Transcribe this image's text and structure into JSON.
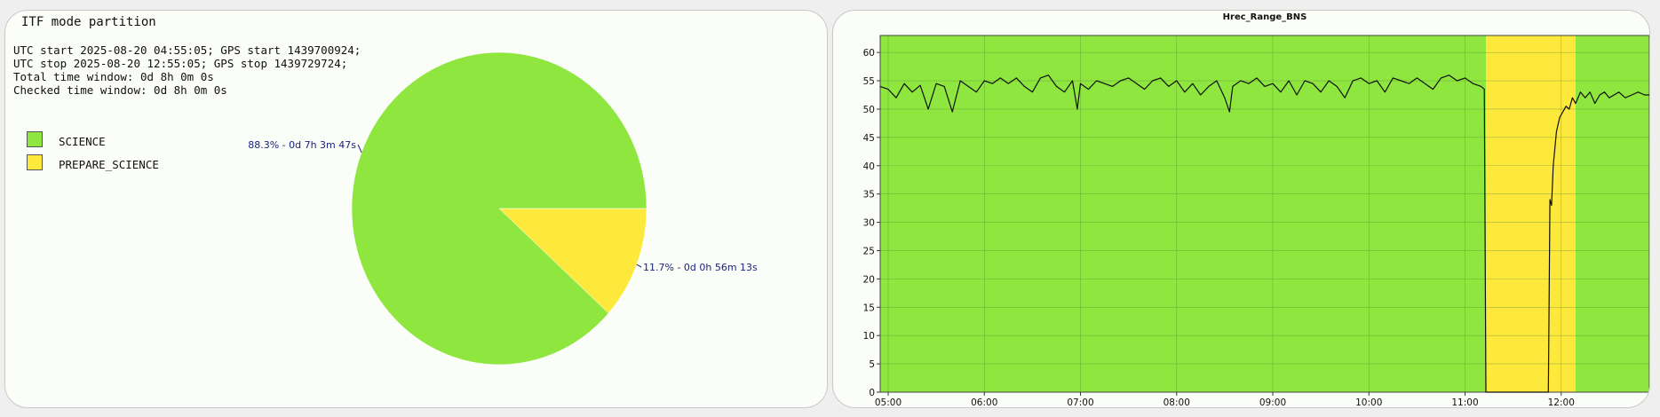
{
  "left_panel": {
    "title": "ITF mode partition",
    "info_lines": [
      "UTC start 2025-08-20 04:55:05; GPS start 1439700924;",
      "UTC stop 2025-08-20 12:55:05; GPS stop 1439729724;",
      "Total time window: 0d 8h 0m 0s",
      "Checked time window: 0d 8h 0m 0s"
    ]
  },
  "chart_data": [
    {
      "type": "pie",
      "title": "ITF mode partition",
      "slices": [
        {
          "name": "SCIENCE",
          "value": 88.3,
          "label": "88.3% - 0d 7h 3m 47s",
          "color": "#8ee63e"
        },
        {
          "name": "PREPARE_SCIENCE",
          "value": 11.7,
          "label": "11.7% - 0d 0h 56m 13s",
          "color": "#fde83c"
        }
      ],
      "legend": "top-left"
    },
    {
      "type": "line",
      "title": "Hrec_Range_BNS",
      "xlabel": "",
      "ylabel": "",
      "x_tick_labels": [
        "05:00",
        "06:00",
        "07:00",
        "08:00",
        "09:00",
        "10:00",
        "11:00",
        "12:00"
      ],
      "y_ticks": [
        0,
        5,
        10,
        15,
        20,
        25,
        30,
        35,
        40,
        45,
        50,
        55,
        60
      ],
      "xlim": [
        "04:55",
        "12:55"
      ],
      "ylim": [
        0,
        63
      ],
      "grid": true,
      "background_bands": [
        {
          "state": "SCIENCE",
          "start": "04:55",
          "end": "11:13",
          "color": "#8ee63e"
        },
        {
          "state": "PREPARE_SCIENCE",
          "start": "11:13",
          "end": "12:09",
          "color": "#fde83c"
        },
        {
          "state": "SCIENCE",
          "start": "12:09",
          "end": "12:55",
          "color": "#8ee63e"
        }
      ],
      "series": [
        {
          "color": "#111111",
          "points": [
            [
              "04:55",
              54.0
            ],
            [
              "05:00",
              53.5
            ],
            [
              "05:05",
              52.0
            ],
            [
              "05:10",
              54.5
            ],
            [
              "05:15",
              53.0
            ],
            [
              "05:20",
              54.2
            ],
            [
              "05:25",
              50.0
            ],
            [
              "05:30",
              54.5
            ],
            [
              "05:35",
              54.0
            ],
            [
              "05:40",
              49.5
            ],
            [
              "05:45",
              55.0
            ],
            [
              "05:50",
              54.0
            ],
            [
              "05:55",
              53.0
            ],
            [
              "06:00",
              55.0
            ],
            [
              "06:05",
              54.5
            ],
            [
              "06:10",
              55.5
            ],
            [
              "06:15",
              54.5
            ],
            [
              "06:20",
              55.5
            ],
            [
              "06:25",
              54.0
            ],
            [
              "06:30",
              53.0
            ],
            [
              "06:35",
              55.5
            ],
            [
              "06:40",
              56.0
            ],
            [
              "06:45",
              54.0
            ],
            [
              "06:50",
              53.0
            ],
            [
              "06:55",
              55.0
            ],
            [
              "06:58",
              50.0
            ],
            [
              "07:00",
              54.5
            ],
            [
              "07:05",
              53.5
            ],
            [
              "07:10",
              55.0
            ],
            [
              "07:15",
              54.5
            ],
            [
              "07:20",
              54.0
            ],
            [
              "07:25",
              55.0
            ],
            [
              "07:30",
              55.5
            ],
            [
              "07:35",
              54.5
            ],
            [
              "07:40",
              53.5
            ],
            [
              "07:45",
              55.0
            ],
            [
              "07:50",
              55.5
            ],
            [
              "07:55",
              54.0
            ],
            [
              "08:00",
              55.0
            ],
            [
              "08:05",
              53.0
            ],
            [
              "08:10",
              54.5
            ],
            [
              "08:15",
              52.5
            ],
            [
              "08:20",
              54.0
            ],
            [
              "08:25",
              55.0
            ],
            [
              "08:30",
              52.0
            ],
            [
              "08:33",
              49.5
            ],
            [
              "08:35",
              54.0
            ],
            [
              "08:40",
              55.0
            ],
            [
              "08:45",
              54.5
            ],
            [
              "08:50",
              55.5
            ],
            [
              "08:55",
              54.0
            ],
            [
              "09:00",
              54.5
            ],
            [
              "09:05",
              53.0
            ],
            [
              "09:10",
              55.0
            ],
            [
              "09:15",
              52.5
            ],
            [
              "09:20",
              55.0
            ],
            [
              "09:25",
              54.5
            ],
            [
              "09:30",
              53.0
            ],
            [
              "09:35",
              55.0
            ],
            [
              "09:40",
              54.0
            ],
            [
              "09:45",
              52.0
            ],
            [
              "09:50",
              55.0
            ],
            [
              "09:55",
              55.5
            ],
            [
              "10:00",
              54.5
            ],
            [
              "10:05",
              55.0
            ],
            [
              "10:10",
              53.0
            ],
            [
              "10:15",
              55.5
            ],
            [
              "10:20",
              55.0
            ],
            [
              "10:25",
              54.5
            ],
            [
              "10:30",
              55.5
            ],
            [
              "10:35",
              54.5
            ],
            [
              "10:40",
              53.5
            ],
            [
              "10:45",
              55.5
            ],
            [
              "10:50",
              56.0
            ],
            [
              "10:55",
              55.0
            ],
            [
              "11:00",
              55.5
            ],
            [
              "11:05",
              54.5
            ],
            [
              "11:10",
              54.0
            ],
            [
              "11:12",
              53.5
            ],
            [
              "11:13",
              0.0
            ],
            [
              "11:52",
              0.0
            ],
            [
              "11:53",
              34.0
            ],
            [
              "11:54",
              33.0
            ],
            [
              "11:55",
              40.0
            ],
            [
              "11:57",
              46.0
            ],
            [
              "11:59",
              48.5
            ],
            [
              "12:01",
              49.5
            ],
            [
              "12:03",
              50.5
            ],
            [
              "12:05",
              50.0
            ],
            [
              "12:07",
              52.0
            ],
            [
              "12:09",
              51.0
            ],
            [
              "12:12",
              53.0
            ],
            [
              "12:15",
              52.0
            ],
            [
              "12:18",
              53.0
            ],
            [
              "12:21",
              51.0
            ],
            [
              "12:24",
              52.5
            ],
            [
              "12:27",
              53.0
            ],
            [
              "12:30",
              52.0
            ],
            [
              "12:33",
              52.5
            ],
            [
              "12:36",
              53.0
            ],
            [
              "12:40",
              52.0
            ],
            [
              "12:44",
              52.5
            ],
            [
              "12:48",
              53.0
            ],
            [
              "12:52",
              52.5
            ],
            [
              "12:55",
              52.5
            ]
          ]
        }
      ]
    }
  ]
}
